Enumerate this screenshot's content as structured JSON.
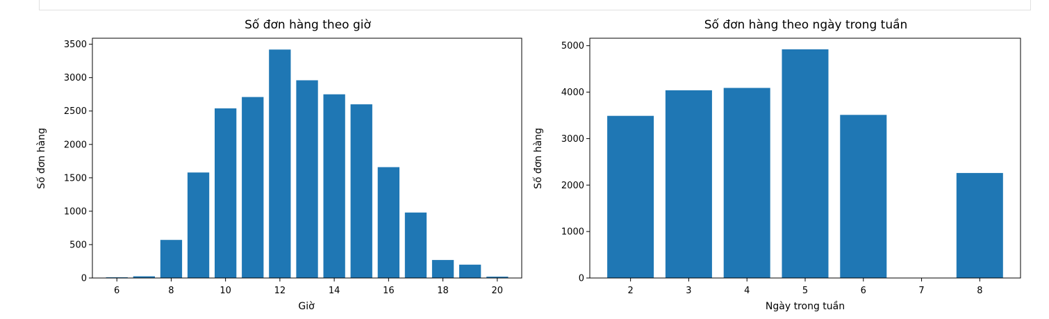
{
  "charts": [
    {
      "title": "Số đơn hàng theo giờ",
      "xlabel": "Giờ",
      "ylabel": "Số đơn hàng",
      "bar_color": "#1f77b4",
      "xticks": [
        6,
        8,
        10,
        12,
        14,
        16,
        18,
        20
      ],
      "yticks": [
        0,
        500,
        1000,
        1500,
        2000,
        2500,
        3000,
        3500
      ]
    },
    {
      "title": "Số đơn hàng theo ngày trong tuần",
      "xlabel": "Ngày trong tuần",
      "ylabel": "Số đơn hàng",
      "bar_color": "#1f77b4",
      "xticks": [
        2,
        3,
        4,
        5,
        6,
        7,
        8
      ],
      "yticks": [
        0,
        1000,
        2000,
        3000,
        4000,
        5000
      ]
    }
  ],
  "chart_data": [
    {
      "type": "bar",
      "title": "Số đơn hàng theo giờ",
      "xlabel": "Giờ",
      "ylabel": "Số đơn hàng",
      "x": [
        6,
        7,
        8,
        9,
        10,
        11,
        12,
        13,
        14,
        15,
        16,
        17,
        18,
        19,
        20
      ],
      "values": [
        10,
        25,
        570,
        1580,
        2540,
        2710,
        3420,
        2960,
        2750,
        2600,
        1660,
        980,
        270,
        200,
        20
      ],
      "xlim": [
        5.1,
        20.9
      ],
      "ylim": [
        0,
        3590
      ],
      "grid": false
    },
    {
      "type": "bar",
      "title": "Số đơn hàng theo ngày trong tuần",
      "xlabel": "Ngày trong tuần",
      "ylabel": "Số đơn hàng",
      "x": [
        2,
        3,
        4,
        5,
        6,
        8
      ],
      "values": [
        3490,
        4040,
        4090,
        4920,
        3510,
        2260
      ],
      "xlim": [
        1.3,
        8.7
      ],
      "ylim": [
        0,
        5160
      ],
      "grid": false
    }
  ]
}
